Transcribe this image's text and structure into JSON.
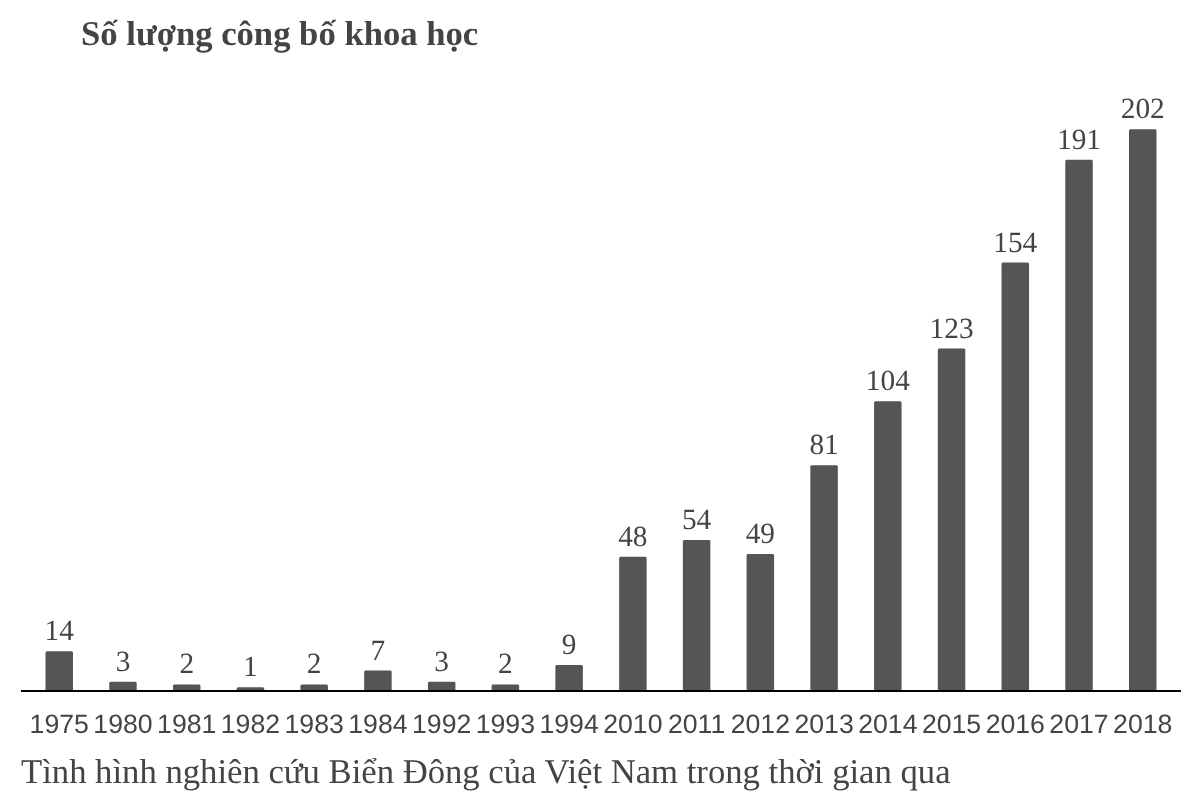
{
  "chart_data": {
    "type": "bar",
    "title": "Số lượng công bố khoa học",
    "categories": [
      "1975",
      "1980",
      "1981",
      "1982",
      "1983",
      "1984",
      "1992",
      "1993",
      "1994",
      "2010",
      "2011",
      "2012",
      "2013",
      "2014",
      "2015",
      "2016",
      "2017",
      "2018"
    ],
    "values": [
      14,
      3,
      2,
      1,
      2,
      7,
      3,
      2,
      9,
      48,
      54,
      49,
      81,
      104,
      123,
      154,
      191,
      202
    ],
    "color": "#555555",
    "data_labels": true,
    "grid": false,
    "annotations": [
      "Tình hình nghiên cứu Biển Đông của Việt Nam trong thời gian qua"
    ]
  }
}
